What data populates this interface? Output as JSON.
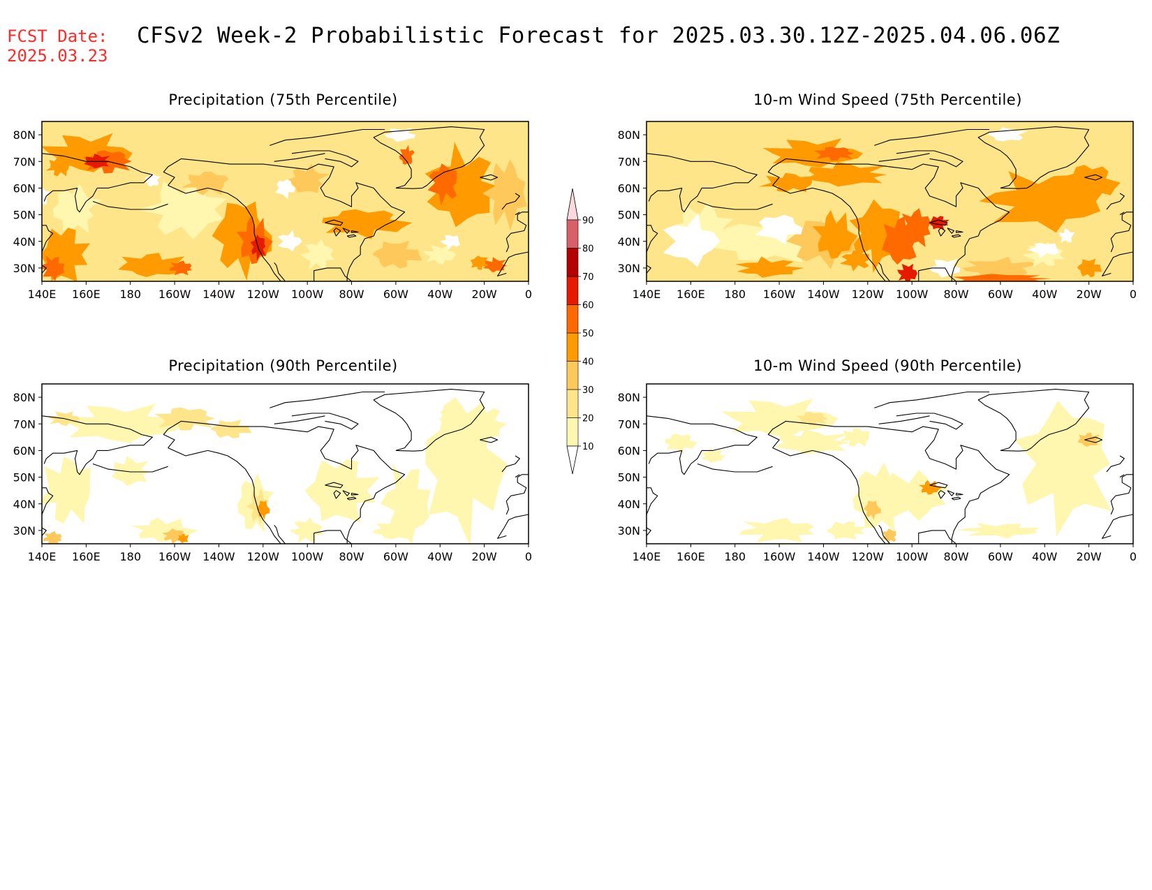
{
  "header": {
    "fcst_label": "FCST Date:",
    "fcst_date": "2025.03.23",
    "title": "CFSv2 Week-2 Probabilistic Forecast for 2025.03.30.12Z-2025.04.06.06Z"
  },
  "axes": {
    "lat_labels": [
      "80N",
      "70N",
      "60N",
      "50N",
      "40N",
      "30N"
    ],
    "lon_labels": [
      "140E",
      "160E",
      "180",
      "160W",
      "140W",
      "120W",
      "100W",
      "80W",
      "60W",
      "40W",
      "20W",
      "0"
    ],
    "lon_range": [
      140,
      360
    ],
    "lat_range": [
      25,
      85
    ]
  },
  "colorbar": {
    "levels": [
      10,
      20,
      30,
      40,
      50,
      60,
      70,
      80,
      90
    ],
    "level_labels": [
      "10",
      "20",
      "30",
      "40",
      "50",
      "60",
      "70",
      "80",
      "90"
    ],
    "colors": [
      "#fff7b0",
      "#ffe58a",
      "#ffc85a",
      "#ff9a00",
      "#ff6a00",
      "#e51a00",
      "#b30000",
      "#d9606a",
      "#f0a0aa",
      "#fbd8dc"
    ]
  },
  "panels": [
    {
      "id": "precip75",
      "title": "Precipitation (75th Percentile)"
    },
    {
      "id": "wind75",
      "title": "10-m Wind Speed (75th Percentile)"
    },
    {
      "id": "precip90",
      "title": "Precipitation (90th Percentile)"
    },
    {
      "id": "wind90",
      "title": "10-m Wind Speed (90th Percentile)"
    }
  ]
}
